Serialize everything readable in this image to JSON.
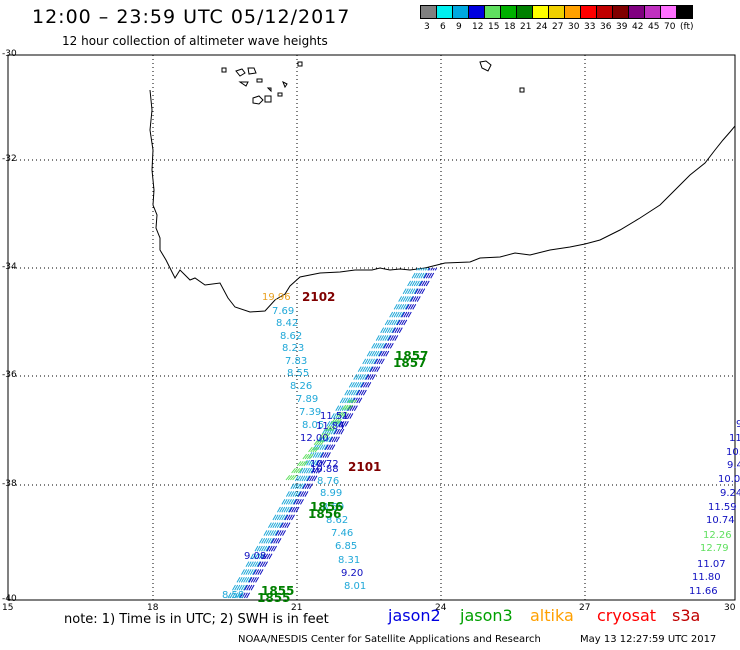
{
  "header": {
    "title": "12:00 – 23:59 UTC 05/12/2017",
    "subtitle": "12 hour collection of altimeter wave heights"
  },
  "legend": {
    "colors": [
      "#808080",
      "#00f0f0",
      "#00a8e0",
      "#0000e0",
      "#60e060",
      "#00b000",
      "#008000",
      "#ffff00",
      "#f0d000",
      "#ffa000",
      "#ff0000",
      "#c00000",
      "#800000",
      "#800080",
      "#c030c0",
      "#ff70ff",
      "#000000"
    ],
    "labels": [
      "3",
      "6",
      "9",
      "12",
      "15",
      "18",
      "21",
      "24",
      "27",
      "30",
      "33",
      "36",
      "39",
      "42",
      "45",
      "70",
      "(ft)"
    ]
  },
  "axes": {
    "lat_labels": [
      "-30",
      "-32",
      "-34",
      "-36",
      "-38",
      "-40"
    ],
    "lon_labels": [
      "15",
      "18",
      "21",
      "24",
      "27",
      "30"
    ]
  },
  "tracks": {
    "pass_labels": [
      {
        "text": "2102",
        "color": "#800000"
      },
      {
        "text": "1857",
        "color": "#008000"
      },
      {
        "text": "1857",
        "color": "#008000"
      },
      {
        "text": "2101",
        "color": "#800000"
      },
      {
        "text": "1856",
        "color": "#008000"
      },
      {
        "text": "1856",
        "color": "#008000"
      },
      {
        "text": "1855",
        "color": "#008000"
      },
      {
        "text": "1855",
        "color": "#008000"
      }
    ],
    "values_left": [
      {
        "text": "19.96",
        "color": "#e8a020"
      },
      {
        "text": "7.69",
        "color": "#20a8d8"
      },
      {
        "text": "8.42",
        "color": "#20a8d8"
      },
      {
        "text": "8.62",
        "color": "#20a8d8"
      },
      {
        "text": "8.23",
        "color": "#20a8d8"
      },
      {
        "text": "7.83",
        "color": "#20a8d8"
      },
      {
        "text": "8.55",
        "color": "#20a8d8"
      },
      {
        "text": "8.26",
        "color": "#20a8d8"
      },
      {
        "text": "7.89",
        "color": "#20a8d8"
      },
      {
        "text": "7.39",
        "color": "#20a8d8"
      },
      {
        "text": "8.05",
        "color": "#20a8d8"
      },
      {
        "text": "11.84",
        "color": "#1010c0"
      },
      {
        "text": "11.51",
        "color": "#1010c0"
      },
      {
        "text": "12.00",
        "color": "#1010c0"
      },
      {
        "text": "10.72",
        "color": "#1010c0"
      },
      {
        "text": "10.88",
        "color": "#1010c0"
      },
      {
        "text": "8.76",
        "color": "#20a8d8"
      },
      {
        "text": "8.99",
        "color": "#20a8d8"
      },
      {
        "text": "8.59",
        "color": "#20a8d8"
      },
      {
        "text": "8.62",
        "color": "#20a8d8"
      },
      {
        "text": "7.46",
        "color": "#20a8d8"
      },
      {
        "text": "6.85",
        "color": "#20a8d8"
      },
      {
        "text": "8.31",
        "color": "#20a8d8"
      },
      {
        "text": "9.20",
        "color": "#1010c0"
      },
      {
        "text": "8.01",
        "color": "#20a8d8"
      },
      {
        "text": "9.08",
        "color": "#1010c0"
      },
      {
        "text": "8.58",
        "color": "#20a8d8"
      }
    ],
    "values_right": [
      {
        "text": "9",
        "color": "#1010c0"
      },
      {
        "text": "11",
        "color": "#1010c0"
      },
      {
        "text": "10.",
        "color": "#1010c0"
      },
      {
        "text": "9.4",
        "color": "#1010c0"
      },
      {
        "text": "10.0",
        "color": "#1010c0"
      },
      {
        "text": "9.24",
        "color": "#1010c0"
      },
      {
        "text": "11.59",
        "color": "#1010c0"
      },
      {
        "text": "10.74",
        "color": "#1010c0"
      },
      {
        "text": "12.26",
        "color": "#60e060"
      },
      {
        "text": "12.79",
        "color": "#60e060"
      },
      {
        "text": "11.07",
        "color": "#1010c0"
      },
      {
        "text": "11.80",
        "color": "#1010c0"
      },
      {
        "text": "11.66",
        "color": "#1010c0"
      }
    ]
  },
  "footer": {
    "note": "note: 1) Time is in UTC; 2) SWH is in feet",
    "satellites": [
      {
        "name": "jason2",
        "color": "#0000e0"
      },
      {
        "name": "jason3",
        "color": "#00a000"
      },
      {
        "name": "altika",
        "color": "#ffa000"
      },
      {
        "name": "cryosat",
        "color": "#ff0000"
      },
      {
        "name": "s3a",
        "color": "#c00000"
      }
    ],
    "credit": "NOAA/NESDIS Center for Satellite Applications and Research",
    "timestamp": "May 13 12:27:59 UTC 2017"
  }
}
